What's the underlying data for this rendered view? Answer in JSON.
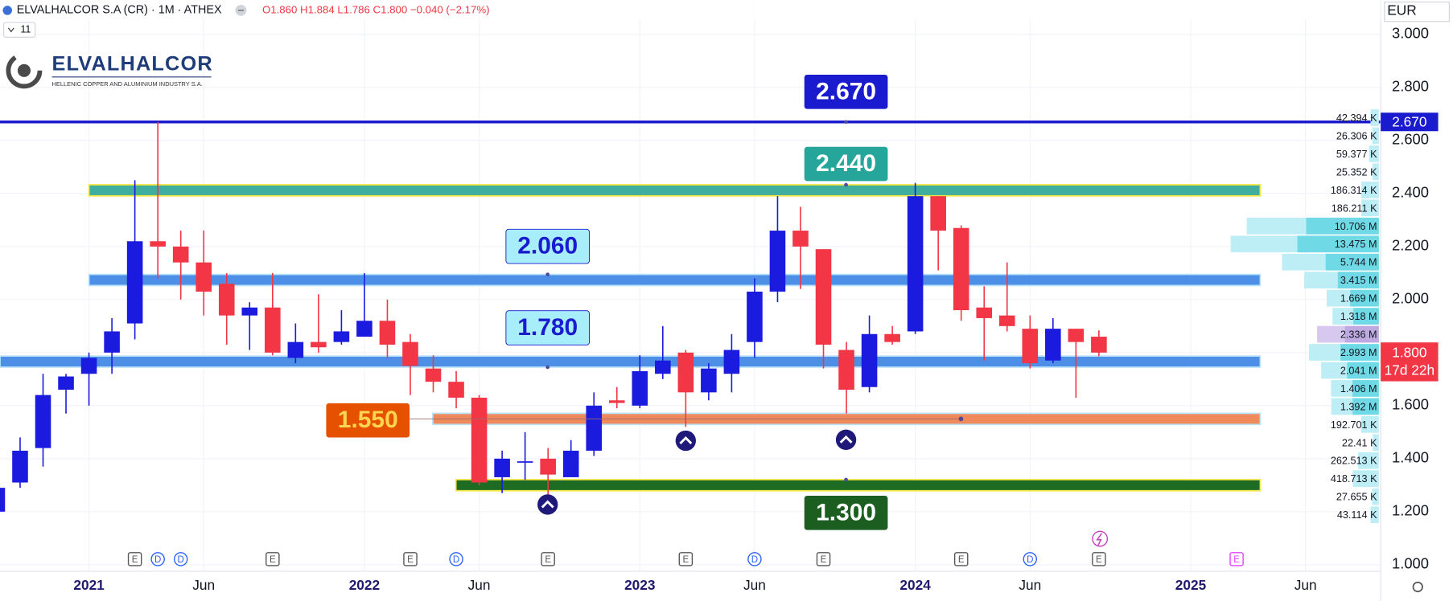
{
  "header": {
    "symbol": "ELVALHALCOR S.A (CR) · 1M · ATHEX",
    "ohlc": "O1.860 H1.884 L1.786 C1.800 −0.040 (−2.17%)",
    "indicators": "11",
    "currency": "EUR",
    "logo": "ELVALHALCOR",
    "tagline": "HELLENIC COPPER AND ALUMINIUM INDUSTRY S.A.",
    "countdown": "17d 22h"
  },
  "chart_data": {
    "type": "candlestick",
    "up_color": "#1b1be0",
    "down_color": "#f23645",
    "x": [
      "2020-09",
      "2020-10",
      "2020-11",
      "2020-12",
      "2021-01",
      "2021-02",
      "2021-03",
      "2021-04",
      "2021-05",
      "2021-06",
      "2021-07",
      "2021-08",
      "2021-09",
      "2021-10",
      "2021-11",
      "2021-12",
      "2022-01",
      "2022-02",
      "2022-03",
      "2022-04",
      "2022-05",
      "2022-06",
      "2022-07",
      "2022-08",
      "2022-09",
      "2022-10",
      "2022-11",
      "2022-12",
      "2023-01",
      "2023-02",
      "2023-03",
      "2023-04",
      "2023-05",
      "2023-06",
      "2023-07",
      "2023-08",
      "2023-09",
      "2023-10",
      "2023-11",
      "2023-12",
      "2024-01",
      "2024-02",
      "2024-03",
      "2024-04",
      "2024-05",
      "2024-06",
      "2024-07",
      "2024-08",
      "2024-09"
    ],
    "open": [
      1.2,
      1.31,
      1.44,
      1.66,
      1.72,
      1.8,
      1.91,
      2.22,
      2.2,
      2.14,
      2.06,
      1.94,
      1.97,
      1.78,
      1.84,
      1.84,
      1.86,
      1.92,
      1.84,
      1.74,
      1.69,
      1.63,
      1.33,
      1.39,
      1.4,
      1.33,
      1.43,
      1.62,
      1.6,
      1.72,
      1.8,
      1.65,
      1.72,
      1.84,
      2.03,
      2.26,
      2.19,
      1.81,
      1.67,
      1.87,
      1.88,
      2.39,
      2.27,
      1.97,
      1.94,
      1.89,
      1.77,
      1.89,
      1.86
    ],
    "high": [
      1.3,
      1.48,
      1.72,
      1.72,
      1.8,
      1.93,
      2.45,
      2.67,
      2.26,
      2.26,
      2.1,
      1.99,
      2.1,
      1.91,
      2.02,
      1.96,
      2.1,
      2.0,
      1.87,
      1.79,
      1.73,
      1.64,
      1.43,
      1.5,
      1.44,
      1.47,
      1.65,
      1.67,
      1.79,
      1.9,
      1.81,
      1.76,
      1.87,
      2.08,
      2.39,
      2.35,
      2.19,
      1.84,
      1.94,
      1.9,
      2.44,
      2.39,
      2.28,
      2.05,
      2.14,
      1.94,
      1.93,
      1.89,
      1.884
    ],
    "low": [
      1.18,
      1.29,
      1.37,
      1.57,
      1.6,
      1.72,
      1.85,
      2.08,
      2.0,
      1.94,
      1.83,
      1.81,
      1.79,
      1.76,
      1.8,
      1.83,
      1.86,
      1.78,
      1.64,
      1.65,
      1.59,
      1.3,
      1.27,
      1.32,
      1.26,
      1.33,
      1.41,
      1.59,
      1.59,
      1.7,
      1.52,
      1.62,
      1.65,
      1.78,
      1.99,
      2.04,
      1.74,
      1.57,
      1.65,
      1.83,
      1.87,
      2.11,
      1.92,
      1.77,
      1.88,
      1.74,
      1.76,
      1.63,
      1.786
    ],
    "close": [
      1.29,
      1.43,
      1.64,
      1.71,
      1.78,
      1.88,
      2.22,
      2.2,
      2.14,
      2.03,
      1.94,
      1.97,
      1.8,
      1.84,
      1.82,
      1.88,
      1.92,
      1.83,
      1.75,
      1.69,
      1.63,
      1.31,
      1.4,
      1.39,
      1.34,
      1.43,
      1.6,
      1.61,
      1.73,
      1.77,
      1.65,
      1.74,
      1.81,
      2.03,
      2.26,
      2.2,
      1.83,
      1.66,
      1.87,
      1.84,
      2.39,
      2.26,
      1.96,
      1.93,
      1.9,
      1.76,
      1.89,
      1.84,
      1.8
    ],
    "ylim": [
      1.0,
      3.0
    ],
    "yticks": [
      {
        "value": 1.0,
        "label": "1.000"
      },
      {
        "value": 1.2,
        "label": "1.200"
      },
      {
        "value": 1.4,
        "label": "1.400"
      },
      {
        "value": 1.6,
        "label": "1.600"
      },
      {
        "value": 1.8,
        "label": "1.800"
      },
      {
        "value": 2.0,
        "label": "2.000"
      },
      {
        "value": 2.2,
        "label": "2.200"
      },
      {
        "value": 2.4,
        "label": "2.400"
      },
      {
        "value": 2.6,
        "label": "2.600"
      },
      {
        "value": 2.8,
        "label": "2.800"
      },
      {
        "value": 3.0,
        "label": "3.000"
      }
    ],
    "xticks": [
      {
        "value": "2021-01",
        "label": "2021"
      },
      {
        "value": "2021-06",
        "label": "Jun"
      },
      {
        "value": "2022-01",
        "label": "2022"
      },
      {
        "value": "2022-06",
        "label": "Jun"
      },
      {
        "value": "2023-01",
        "label": "2023"
      },
      {
        "value": "2023-06",
        "label": "Jun"
      },
      {
        "value": "2024-01",
        "label": "2024"
      },
      {
        "value": "2024-06",
        "label": "Jun"
      },
      {
        "value": "2025-01",
        "label": "2025"
      },
      {
        "value": "2025-06",
        "label": "Jun"
      }
    ],
    "grid": true,
    "last_price": {
      "value": 1.8,
      "label": "1.800"
    },
    "levels": [
      {
        "value": 2.67,
        "label": "2.670",
        "color": "#1a1acf",
        "label_bg": "#1a1acf",
        "label_color": "#ffffff"
      },
      {
        "value": 2.44,
        "label": "2.440",
        "color": "#3fae9f",
        "label_bg": "#26a69a",
        "label_color": "#ffffff"
      },
      {
        "value": 2.06,
        "label": "2.060",
        "color": "#4d8fe6",
        "label_bg": "#a8eefa",
        "label_color": "#1a1acf"
      },
      {
        "value": 1.78,
        "label": "1.780",
        "color": "#4d8fe6",
        "label_bg": "#a8eefa",
        "label_color": "#1a1acf"
      },
      {
        "value": 1.55,
        "label": "1.550",
        "color": "#f08a5d",
        "label_bg": "#e65100",
        "label_color": "#ffd54f"
      },
      {
        "value": 1.3,
        "label": "1.300",
        "color": "#1e6b24",
        "label_bg": "#1b5e20",
        "label_color": "#ffffff"
      }
    ],
    "volume_profile": {
      "values": [
        42394,
        26306,
        59377,
        25352,
        186314,
        186211,
        10706000,
        13475000,
        5744000,
        3415000,
        1669000,
        1318000,
        2336000,
        2993000,
        2041000,
        1406000,
        1392000,
        192701,
        22410,
        262513,
        418713,
        27655,
        43114
      ],
      "value_labels": [
        "42.394 K",
        "26.306 K",
        "59.377 K",
        "25.352 K",
        "186.314 K",
        "186.211 K",
        "10.706 M",
        "13.475 M",
        "5.744 M",
        "3.415 M",
        "1.669 M",
        "1.318 M",
        "2.336 M",
        "2.993 M",
        "2.041 M",
        "1.406 M",
        "1.392 M",
        "192.701 K",
        "22.41 K",
        "262.513 K",
        "418.713 K",
        "27.655 K",
        "43.114 K"
      ]
    },
    "events": [
      {
        "x": "2021-03",
        "label": "E",
        "color": "#555555"
      },
      {
        "x": "2021-04",
        "label": "D",
        "color": "#2962ff"
      },
      {
        "x": "2021-05",
        "label": "D",
        "color": "#2962ff"
      },
      {
        "x": "2021-09",
        "label": "E",
        "color": "#555555"
      },
      {
        "x": "2022-03",
        "label": "E",
        "color": "#555555"
      },
      {
        "x": "2022-05",
        "label": "D",
        "color": "#2962ff"
      },
      {
        "x": "2022-09",
        "label": "E",
        "color": "#555555"
      },
      {
        "x": "2023-03",
        "label": "E",
        "color": "#555555"
      },
      {
        "x": "2023-06",
        "label": "D",
        "color": "#2962ff"
      },
      {
        "x": "2023-09",
        "label": "E",
        "color": "#555555"
      },
      {
        "x": "2024-03",
        "label": "E",
        "color": "#555555"
      },
      {
        "x": "2024-06",
        "label": "D",
        "color": "#2962ff"
      },
      {
        "x": "2024-09",
        "label": "E",
        "color": "#555555"
      },
      {
        "x": "2025-03",
        "label": "E",
        "color": "#e040fb"
      }
    ]
  }
}
